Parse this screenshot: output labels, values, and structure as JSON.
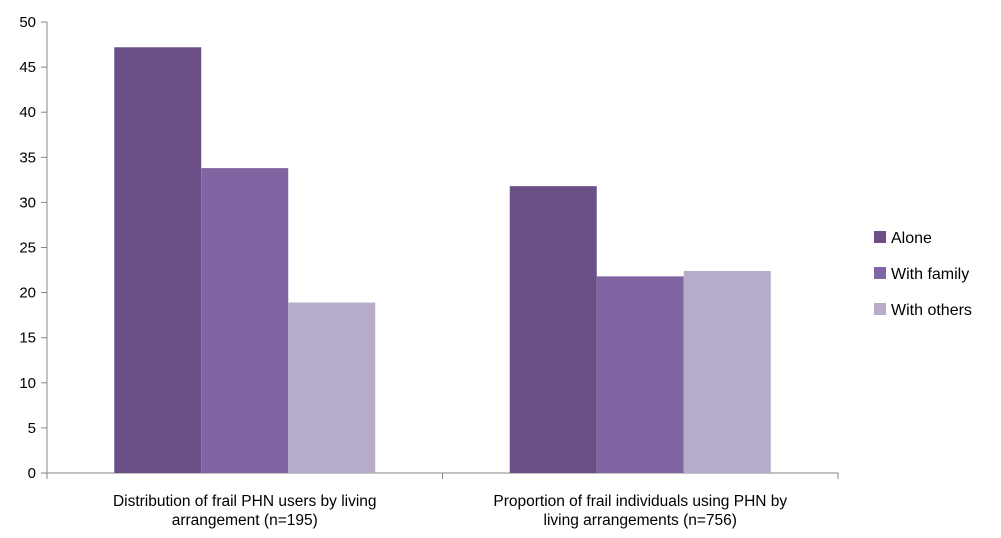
{
  "chart_data": {
    "type": "bar",
    "categories": [
      [
        "Distribution of frail PHN users by living",
        "arrangement (n=195)"
      ],
      [
        "Proportion of frail individuals using PHN by",
        "living arrangements (n=756)"
      ]
    ],
    "series": [
      {
        "name": "Alone",
        "values": [
          47.2,
          31.8
        ],
        "color": "#6a5086"
      },
      {
        "name": "With family",
        "values": [
          33.8,
          21.8
        ],
        "color": "#8165a2"
      },
      {
        "name": "With others",
        "values": [
          18.9,
          22.4
        ],
        "color": "#b8accb"
      }
    ],
    "title": "",
    "xlabel": "",
    "ylabel": "",
    "ylim": [
      0,
      50
    ],
    "yticks": [
      0,
      5,
      10,
      15,
      20,
      25,
      30,
      35,
      40,
      45,
      50
    ],
    "grid": false,
    "legend_position": "right"
  }
}
